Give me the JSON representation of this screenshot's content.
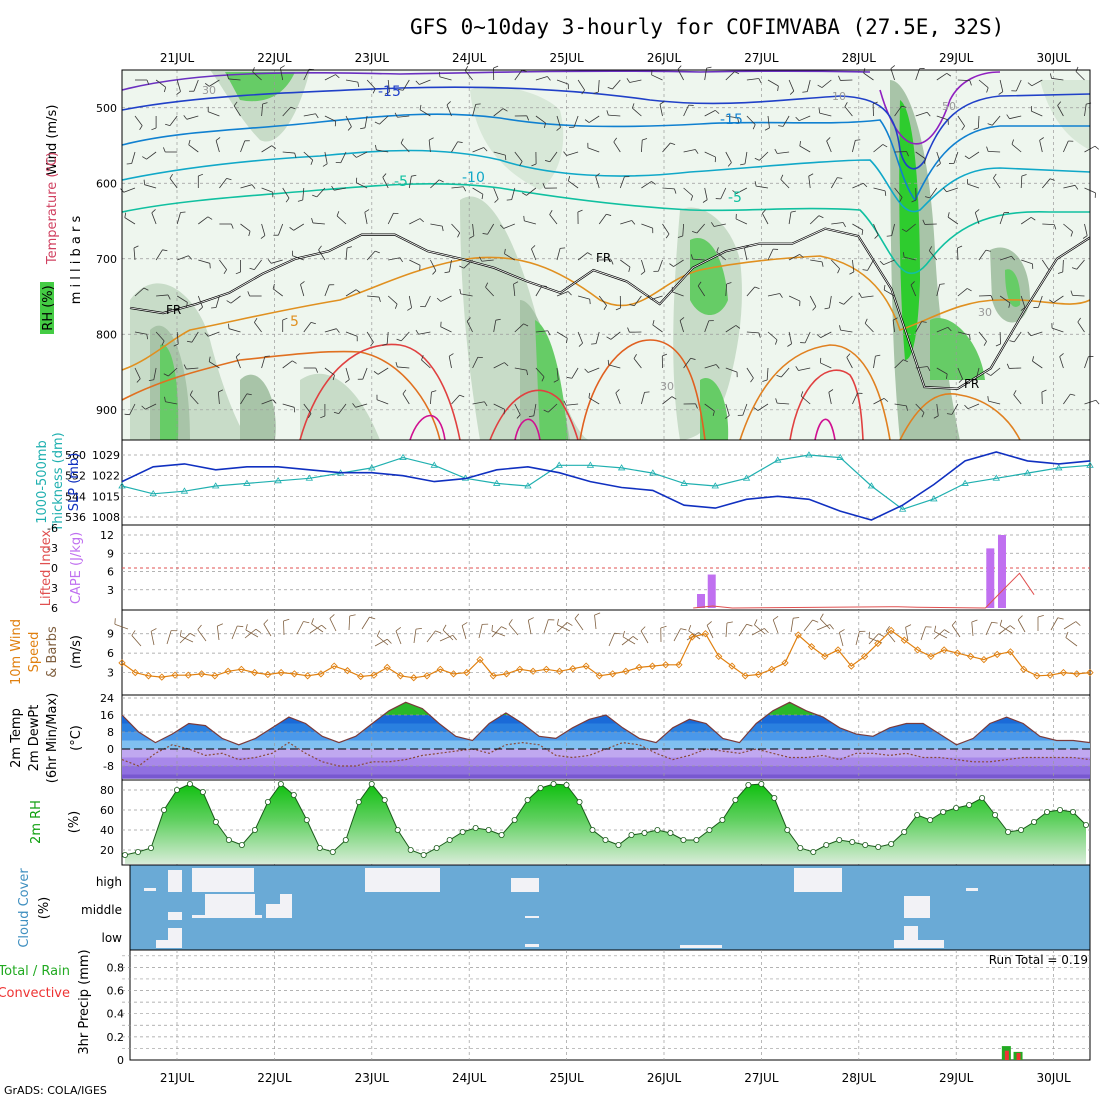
{
  "chart_data": {
    "type": "meteogram",
    "title": "GFS 0~10day 3-hourly for COFIMVABA (27.5E, 32S)",
    "credit": "GrADS: COLA/IGES",
    "x_ticks": [
      "21JUL",
      "22JUL",
      "23JUL",
      "24JUL",
      "25JUL",
      "26JUL",
      "27JUL",
      "28JUL",
      "29JUL",
      "30JUL"
    ],
    "colors": {
      "frame": "#000000",
      "grid": "#9a9a9a",
      "rh_light": "#e6f2e6",
      "rh_mid": "#c8dcc8",
      "rh_dark": "#a8c4a8",
      "rh_green": "#66cc66",
      "rh_bright": "#2ecc2e",
      "temp_cold": "#2060d0",
      "temp_mid": "#10b0c0",
      "temp_teal": "#10c0a0",
      "temp_warm": "#e09020",
      "temp_hot": "#e04040",
      "temp_magenta": "#d01090",
      "slp": "#1030c0",
      "thick": "#20b0b0",
      "cape": "#c070f0",
      "li": "#e05050",
      "wind": "#e08010",
      "barb": "#806040",
      "precip_total": "#22aa22",
      "precip_conv": "#ee3333",
      "cloud_bg": "#6aaad6",
      "cloud_fill": "#f0f0f0"
    },
    "panels": [
      {
        "name": "upper-air",
        "labels": [
          "Wind (m/s)",
          "Temperature (°C)",
          "RH (%)",
          "m i l l i b a r s"
        ],
        "yticks": [
          500,
          600,
          700,
          800,
          900
        ],
        "contour_labels": [
          "-15",
          "-15",
          "-10",
          "-5",
          "-5",
          "5",
          "FR",
          "FR",
          "FR",
          "30",
          "30",
          "30",
          "10",
          "50"
        ],
        "freezing_level_mb": [
          765,
          772,
          760,
          745,
          720,
          700,
          690,
          668,
          668,
          690,
          700,
          712,
          730,
          745,
          715,
          730,
          760,
          712,
          690,
          680,
          680,
          660,
          670,
          740,
          870,
          872,
          845,
          770,
          700,
          672
        ]
      },
      {
        "name": "slp-thickness",
        "labels": [
          "1000-500mb",
          "Thickness (dm)",
          "SLP (mb)"
        ],
        "yticks_left": [
          560,
          552,
          544,
          536
        ],
        "yticks_right": [
          1029,
          1022,
          1015,
          1008
        ],
        "slp_mb": [
          1020,
          1025,
          1026,
          1024,
          1025,
          1025,
          1024,
          1023,
          1023,
          1022,
          1020,
          1021,
          1024,
          1025,
          1023,
          1020,
          1018,
          1017,
          1012,
          1011,
          1014,
          1015,
          1014,
          1010,
          1007,
          1012,
          1019,
          1027,
          1030,
          1027,
          1026,
          1027
        ],
        "thickness_dm": [
          548,
          545,
          546,
          548,
          549,
          550,
          551,
          553,
          555,
          559,
          556,
          551,
          549,
          548,
          556,
          556,
          555,
          553,
          549,
          548,
          551,
          558,
          560,
          559,
          548,
          539,
          543,
          549,
          551,
          553,
          555,
          556
        ]
      },
      {
        "name": "cape-li",
        "labels": [
          "Lifted Index",
          "CAPE (J/kg)"
        ],
        "yticks_left": [
          "-6",
          "-3",
          "0",
          "3",
          "6"
        ],
        "yticks_right": [
          12,
          9,
          6,
          3
        ],
        "cape_bars": [
          {
            "x": 5.38,
            "v": 2.3
          },
          {
            "x": 5.49,
            "v": 5.5
          },
          {
            "x": 8.35,
            "v": 9.8
          },
          {
            "x": 8.47,
            "v": 12.0
          }
        ],
        "li_x": [
          5.3,
          5.5,
          5.7,
          7.4,
          7.6,
          8.3,
          8.5,
          8.65,
          8.8
        ],
        "li_v": [
          6,
          5.7,
          6,
          5.8,
          5.9,
          6,
          3,
          0.8,
          4
        ]
      },
      {
        "name": "wind10m",
        "labels": [
          "10m Wind",
          "Speed",
          "& Barbs",
          "(m/s)"
        ],
        "yticks": [
          9,
          6,
          3
        ],
        "speed_ms": [
          4.5,
          3,
          2.5,
          2.3,
          2.6,
          2.6,
          2.8,
          2.5,
          3.2,
          3.5,
          3,
          2.7,
          3,
          2.8,
          2.5,
          2.8,
          4,
          3.3,
          2.4,
          2.6,
          3.8,
          2.5,
          2.2,
          2.5,
          3.5,
          2.8,
          3,
          5,
          2.5,
          2.8,
          3.5,
          3.2,
          3.5,
          3.2,
          3.6,
          4,
          2.5,
          2.8,
          3.2,
          3.8,
          4,
          4.2,
          4.2,
          8.5,
          9,
          5.5,
          4,
          2.5,
          2.7,
          3.5,
          4.5,
          8.8,
          7,
          5.5,
          6.5,
          4,
          5.5,
          7.5,
          9.5,
          8,
          6.5,
          5.5,
          6.5,
          6,
          5.5,
          5,
          5.8,
          6.2,
          3.5,
          2.5,
          2.6,
          3,
          2.8,
          3
        ]
      },
      {
        "name": "temp2m",
        "labels": [
          "2m Temp",
          "2m DewPt",
          "(6hr Min/Max)",
          "(°C)"
        ],
        "yticks": [
          24,
          16,
          8,
          0,
          -8
        ],
        "temp_c": [
          16,
          8,
          3,
          7,
          12,
          11,
          5,
          2,
          5,
          10,
          15,
          12,
          6,
          3,
          6,
          12,
          18,
          22,
          19,
          12,
          6,
          4,
          12,
          17,
          12,
          6,
          5,
          10,
          14,
          16,
          10,
          5,
          3,
          10,
          14,
          12,
          5,
          3,
          12,
          18,
          22,
          18,
          15,
          10,
          7,
          6,
          10,
          12,
          12,
          7,
          2,
          5,
          12,
          15,
          12,
          6,
          4,
          4,
          3
        ],
        "dewpt_c": [
          -5,
          -8,
          -2,
          2,
          0,
          -3,
          -2,
          -5,
          -4,
          -2,
          3,
          -2,
          -6,
          -8,
          -8,
          -6,
          -6,
          -5,
          -3,
          -2,
          -1,
          0,
          -2,
          2,
          3,
          2,
          -3,
          -4,
          -3,
          0,
          3,
          2,
          -2,
          -5,
          -3,
          0,
          -1,
          -2,
          0,
          -2,
          -4,
          -4,
          -3,
          -5,
          -2,
          -2,
          -3,
          -2,
          -4,
          -4,
          -5,
          -6,
          -6,
          -5,
          -4,
          -4,
          -4,
          -4,
          -5
        ]
      },
      {
        "name": "rh2m",
        "labels": [
          "2m RH",
          "(%)"
        ],
        "yticks": [
          80,
          60,
          40,
          20
        ],
        "rh_pct": [
          15,
          18,
          22,
          60,
          80,
          86,
          78,
          48,
          30,
          25,
          40,
          68,
          86,
          75,
          50,
          22,
          18,
          30,
          68,
          86,
          70,
          40,
          20,
          15,
          22,
          30,
          38,
          42,
          40,
          35,
          50,
          70,
          82,
          86,
          85,
          68,
          40,
          30,
          25,
          35,
          37,
          40,
          37,
          30,
          30,
          40,
          50,
          70,
          85,
          86,
          72,
          40,
          22,
          18,
          25,
          30,
          28,
          25,
          23,
          26,
          38,
          55,
          50,
          58,
          62,
          65,
          72,
          55,
          38,
          40,
          48,
          58,
          60,
          58,
          45
        ]
      },
      {
        "name": "cloud",
        "labels": [
          "Cloud Cover",
          "(%)"
        ],
        "rows": [
          "high",
          "middle",
          "low"
        ]
      },
      {
        "name": "precip",
        "labels": [
          "Total / Rain",
          "Convective",
          "3hr Precip (mm)"
        ],
        "yticks": [
          "0.8",
          "0.6",
          "0.4",
          "0.2",
          "0"
        ],
        "run_total": "Run Total = 0.19",
        "bars": [
          {
            "x": 8.52,
            "total": 0.12,
            "conv": 0.08
          },
          {
            "x": 8.64,
            "total": 0.07,
            "conv": 0.06
          }
        ]
      }
    ]
  }
}
